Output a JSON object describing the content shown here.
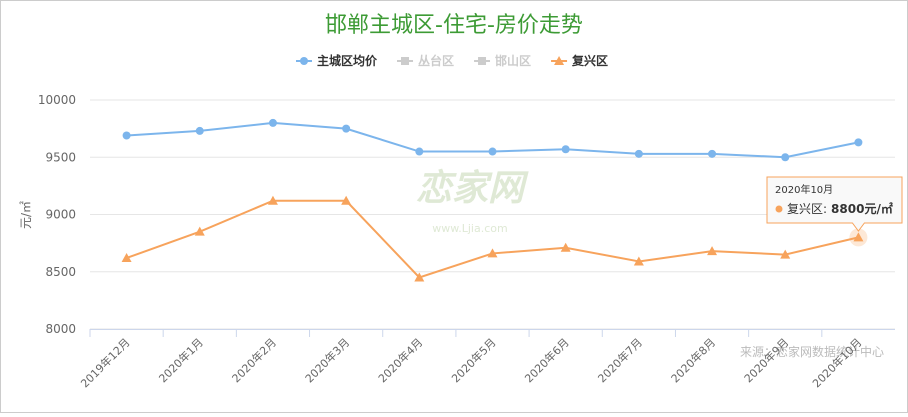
{
  "chart_data": {
    "type": "line",
    "title": "邯郸主城区-住宅-房价走势",
    "y_label": "元/㎡",
    "categories": [
      "2019年12月",
      "2020年1月",
      "2020年2月",
      "2020年3月",
      "2020年4月",
      "2020年5月",
      "2020年6月",
      "2020年7月",
      "2020年8月",
      "2020年9月",
      "2020年10月"
    ],
    "series": [
      {
        "name": "主城区均价",
        "color": "#7cb5ec",
        "marker": "circle",
        "values": [
          9690,
          9730,
          9800,
          9750,
          9550,
          9550,
          9570,
          9530,
          9530,
          9500,
          9630
        ]
      },
      {
        "name": "复兴区",
        "color": "#f7a35c",
        "marker": "triangle",
        "values": [
          8620,
          8850,
          9120,
          9120,
          8450,
          8660,
          8710,
          8590,
          8680,
          8650,
          8800
        ]
      }
    ],
    "legend_hidden": [
      {
        "name": "丛台区",
        "color": "#cccccc"
      },
      {
        "name": "邯山区",
        "color": "#cccccc"
      }
    ],
    "legend_order": [
      "主城区均价",
      "丛台区",
      "邯山区",
      "复兴区"
    ],
    "ylim": [
      8000,
      10000
    ],
    "yticks": [
      8000,
      8500,
      9000,
      9500,
      10000
    ],
    "grid": true,
    "tooltip": {
      "series": 1,
      "index": 10,
      "label": "复兴区:",
      "value_label": "8800元/㎡"
    },
    "source": "来源：恋家网数据统计中心",
    "watermark": {
      "name": "恋家网",
      "url": "www.Ljia.com"
    }
  }
}
